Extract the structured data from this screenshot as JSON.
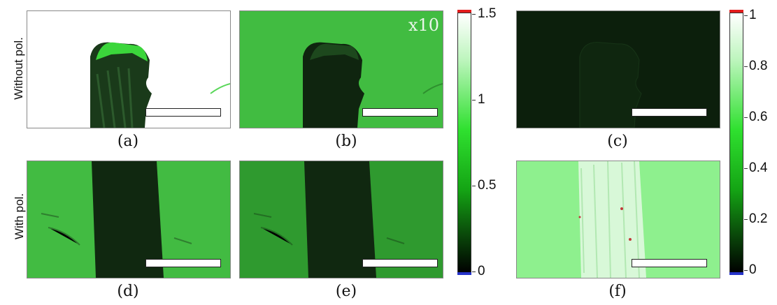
{
  "figure": {
    "row_labels": [
      "Without pol.",
      "With pol."
    ],
    "panel_labels": [
      "(a)",
      "(b)",
      "(c)",
      "(d)",
      "(e)",
      "(f)"
    ],
    "gain_annotation": "x10",
    "colorbar_left": {
      "ticks": [
        "1.5",
        "1",
        "0.5",
        "0"
      ],
      "range": [
        0,
        1.5
      ]
    },
    "colorbar_right": {
      "ticks": [
        "1",
        "0.8",
        "0.6",
        "0.4",
        "0.2",
        "0"
      ],
      "range": [
        0,
        1
      ]
    },
    "colors": {
      "green": "#3dbd3d",
      "dark": "#0b200b",
      "pale_green": "#8ff48f",
      "cap_high": "#e21b1b",
      "cap_low": "#2633c9"
    }
  }
}
